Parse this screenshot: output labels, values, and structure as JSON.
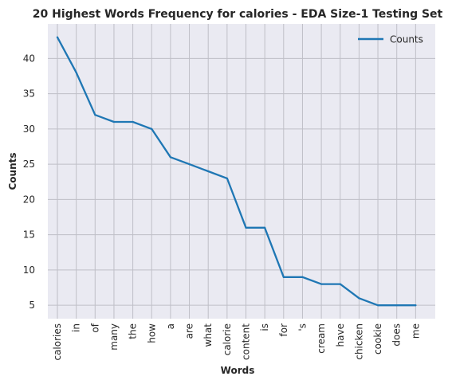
{
  "chart_data": {
    "type": "line",
    "title": "20 Highest Words Frequency for calories - EDA Size-1 Testing Set",
    "xlabel": "Words",
    "ylabel": "Counts",
    "categories": [
      "calories",
      "in",
      "of",
      "many",
      "the",
      "how",
      "a",
      "are",
      "what",
      "calorie",
      "content",
      "is",
      "for",
      "'s",
      "cream",
      "have",
      "chicken",
      "cookie",
      "does",
      "me"
    ],
    "series": [
      {
        "name": "Counts",
        "values": [
          43,
          38,
          32,
          31,
          31,
          30,
          26,
          25,
          24,
          23,
          16,
          16,
          9,
          9,
          8,
          8,
          6,
          5,
          5,
          5
        ]
      }
    ],
    "yticks": [
      5,
      10,
      15,
      20,
      25,
      30,
      35,
      40
    ],
    "ylim": [
      3.1,
      44.9
    ],
    "grid": true,
    "legend_position": "top-right",
    "colors": {
      "line": "#1f77b4",
      "background": "#eaeaf2",
      "grid": "#bfbfc7"
    }
  }
}
